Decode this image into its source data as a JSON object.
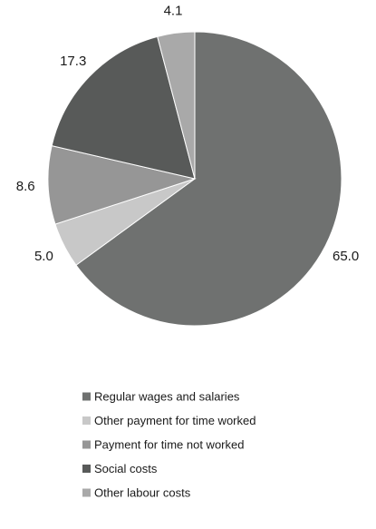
{
  "chart_data": {
    "type": "pie",
    "title": "",
    "start_angle_deg": 0,
    "direction": "clockwise",
    "legend_position": "bottom",
    "slices": [
      {
        "label": "Regular wages and salaries",
        "value": 65.0,
        "value_label": "65.0",
        "color": "#6f7170"
      },
      {
        "label": "Other payment for time worked",
        "value": 5.0,
        "value_label": "5.0",
        "color": "#c8c8c8"
      },
      {
        "label": "Payment for time not worked",
        "value": 8.6,
        "value_label": "8.6",
        "color": "#969696"
      },
      {
        "label": "Social costs",
        "value": 17.3,
        "value_label": "17.3",
        "color": "#585a59"
      },
      {
        "label": "Other labour costs",
        "value": 4.1,
        "value_label": "4.1",
        "color": "#a9a9a9"
      }
    ]
  }
}
